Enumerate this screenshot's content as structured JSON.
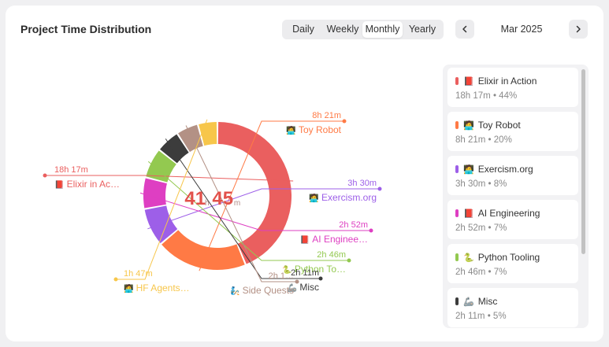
{
  "header": {
    "title": "Project Time Distribution",
    "ranges": [
      "Daily",
      "Weekly",
      "Monthly",
      "Yearly"
    ],
    "active_range": "Monthly",
    "month": "Mar 2025",
    "prev_icon": "chevron-left-icon",
    "next_icon": "chevron-right-icon"
  },
  "total": {
    "hours": "41",
    "hours_unit": "h",
    "minutes": "45",
    "minutes_unit": "m"
  },
  "chart_data": {
    "type": "pie",
    "variant": "donut",
    "total": "41h 45m",
    "series": [
      {
        "label": "Elixir in Action",
        "short_label": "Elixir in Ac…",
        "icon": "📕",
        "duration": "18h 17m",
        "minutes": 1097,
        "color": "#ea5f5f"
      },
      {
        "label": "Toy Robot",
        "short_label": "Toy Robot",
        "icon": "🧑‍💻",
        "duration": "8h 21m",
        "minutes": 501,
        "color": "#ff7a45"
      },
      {
        "label": "Exercism.org",
        "short_label": "Exercism.org",
        "icon": "🧑‍💻",
        "duration": "3h 30m",
        "minutes": 210,
        "color": "#9d5fe8"
      },
      {
        "label": "AI Engineering",
        "short_label": "AI Enginee…",
        "icon": "📕",
        "duration": "2h 52m",
        "minutes": 172,
        "color": "#de3fc2"
      },
      {
        "label": "Python Tooling",
        "short_label": "Python To…",
        "icon": "🐍",
        "duration": "2h 46m",
        "minutes": 166,
        "color": "#93c950"
      },
      {
        "label": "Misc",
        "short_label": "Misc",
        "icon": "🦾",
        "duration": "2h 11m",
        "minutes": 131,
        "color": "#3c3c3c"
      },
      {
        "label": "Side Quests",
        "short_label": "Side Quests",
        "icon": "🧞",
        "duration": "2h 1…",
        "minutes": 121,
        "color": "#b39185"
      },
      {
        "label": "HF Agents",
        "short_label": "HF Agents…",
        "icon": "🧑‍💻",
        "duration": "1h 47m",
        "minutes": 107,
        "color": "#f7c64a"
      }
    ]
  },
  "legend": {
    "items": [
      {
        "name": "Elixir in Action",
        "icon": "📕",
        "detail": "18h 17m • 44%",
        "color": "#ea5f5f"
      },
      {
        "name": "Toy Robot",
        "icon": "🧑‍💻",
        "detail": "8h 21m • 20%",
        "color": "#ff7a45"
      },
      {
        "name": "Exercism.org",
        "icon": "🧑‍💻",
        "detail": "3h 30m • 8%",
        "color": "#9d5fe8"
      },
      {
        "name": "AI Engineering",
        "icon": "📕",
        "detail": "2h 52m • 7%",
        "color": "#de3fc2"
      },
      {
        "name": "Python Tooling",
        "icon": "🐍",
        "detail": "2h 46m • 7%",
        "color": "#93c950"
      },
      {
        "name": "Misc",
        "icon": "🦾",
        "detail": "2h 11m • 5%",
        "color": "#3c3c3c"
      }
    ]
  }
}
